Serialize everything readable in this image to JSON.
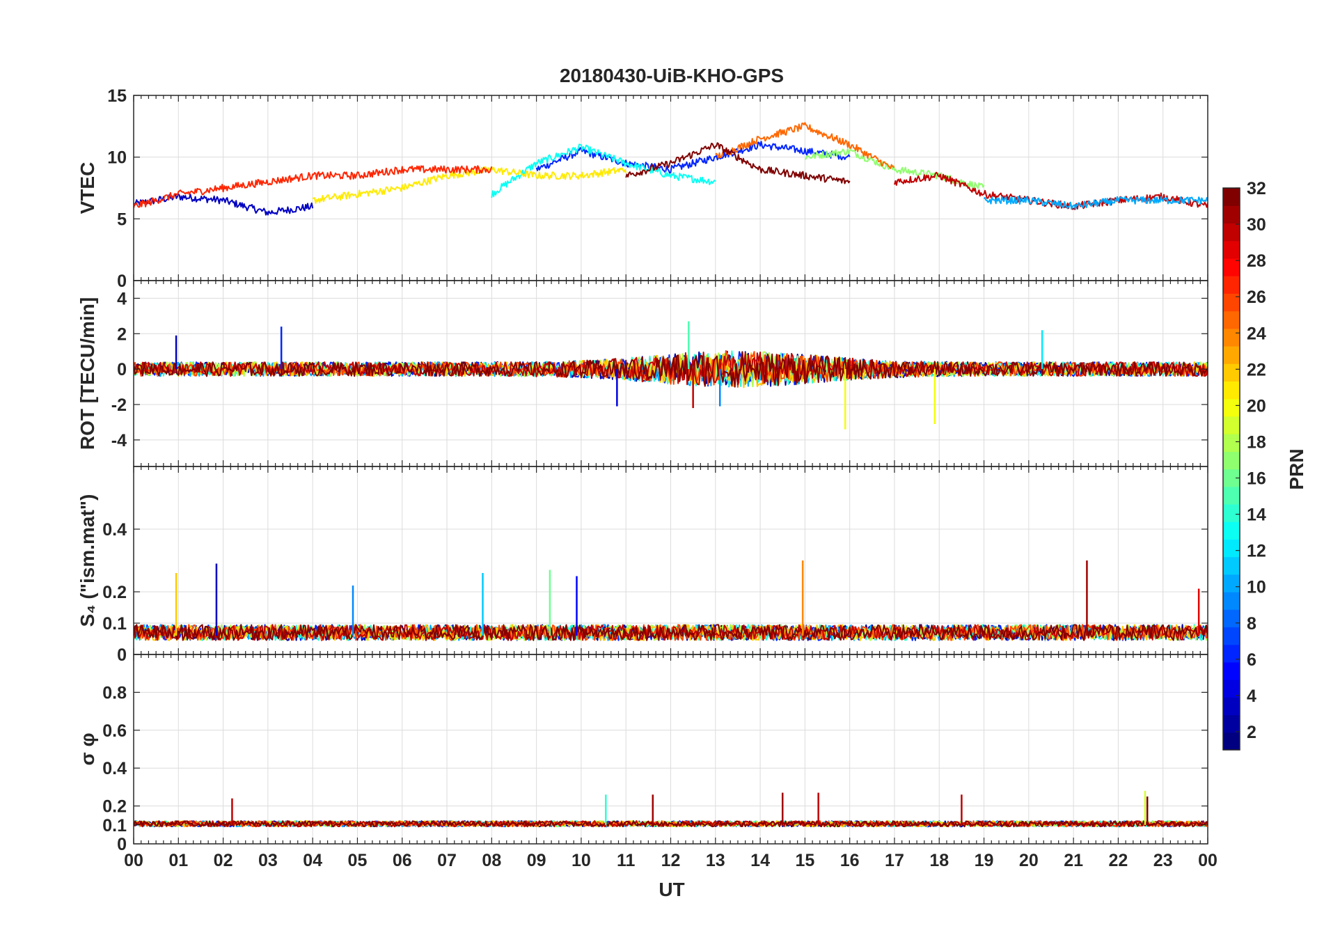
{
  "chart_data": {
    "type": "line",
    "title": "20180430-UiB-KHO-GPS",
    "xlabel": "UT",
    "x_ticks": [
      "00",
      "01",
      "02",
      "03",
      "04",
      "05",
      "06",
      "07",
      "08",
      "09",
      "10",
      "11",
      "12",
      "13",
      "14",
      "15",
      "16",
      "17",
      "18",
      "19",
      "20",
      "21",
      "22",
      "23",
      "00"
    ],
    "x_range_hours": [
      0,
      24
    ],
    "panels": [
      {
        "name": "vtec",
        "ylabel": "VTEC",
        "ylim": [
          0,
          15
        ],
        "yticks": [
          0,
          5,
          10,
          15
        ],
        "ytick_labels": [
          "0",
          "5",
          "10",
          "15"
        ],
        "typical_range": [
          3,
          13
        ],
        "series": [
          {
            "prn": 3,
            "hours": [
              0,
              1,
              2,
              3,
              4
            ],
            "values": [
              6.2,
              6.8,
              6.5,
              5.5,
              6.0
            ]
          },
          {
            "prn": 6,
            "hours": [
              9,
              10,
              11,
              12,
              13,
              14,
              15,
              16
            ],
            "values": [
              9.0,
              10.5,
              9.5,
              9.0,
              10.0,
              11.0,
              10.5,
              10.0
            ]
          },
          {
            "prn": 13,
            "hours": [
              8,
              9,
              10,
              11,
              12,
              13
            ],
            "values": [
              7.0,
              9.5,
              10.8,
              9.5,
              8.5,
              8.0
            ]
          },
          {
            "prn": 17,
            "hours": [
              15,
              16,
              17,
              18,
              19
            ],
            "values": [
              10.0,
              10.5,
              9.0,
              8.5,
              7.5
            ]
          },
          {
            "prn": 21,
            "hours": [
              4,
              5,
              6,
              7,
              8,
              9,
              10,
              11
            ],
            "values": [
              6.5,
              7.0,
              7.5,
              8.5,
              9.0,
              8.5,
              8.5,
              9.0
            ]
          },
          {
            "prn": 25,
            "hours": [
              13,
              14,
              15,
              16,
              17
            ],
            "values": [
              10.0,
              11.5,
              12.5,
              11.0,
              9.0
            ]
          },
          {
            "prn": 27,
            "hours": [
              0,
              1,
              2,
              3,
              4,
              5,
              6,
              7,
              8
            ],
            "values": [
              6.0,
              7.0,
              7.5,
              8.0,
              8.5,
              8.5,
              9.0,
              9.0,
              9.0
            ]
          },
          {
            "prn": 32,
            "hours": [
              11,
              12,
              13,
              14,
              15,
              16
            ],
            "values": [
              8.5,
              9.5,
              11.0,
              9.0,
              8.5,
              8.0
            ]
          },
          {
            "prn": 30,
            "hours": [
              17,
              18,
              19,
              20,
              21,
              22,
              23,
              24
            ],
            "values": [
              8.0,
              8.5,
              7.0,
              6.5,
              6.0,
              6.5,
              6.8,
              6.0
            ]
          },
          {
            "prn": 10,
            "hours": [
              19,
              20,
              21,
              22,
              23,
              24
            ],
            "values": [
              6.5,
              6.5,
              6.0,
              6.5,
              6.5,
              6.5
            ]
          }
        ]
      },
      {
        "name": "rot",
        "ylabel": "ROT [TECU/min]",
        "ylim": [
          -5.5,
          5
        ],
        "yticks": [
          -4,
          -2,
          0,
          2,
          4
        ],
        "ytick_labels": [
          "-4",
          "-2",
          "0",
          "2",
          "4"
        ],
        "typical_range": [
          -3.4,
          2.6
        ],
        "baseline": 0,
        "noise_amplitude": 0.4,
        "spikes": [
          {
            "hour": 0.95,
            "value": 1.9,
            "prn": 3
          },
          {
            "hour": 3.3,
            "value": 2.4,
            "prn": 6
          },
          {
            "hour": 10.8,
            "value": -2.1,
            "prn": 4
          },
          {
            "hour": 12.4,
            "value": 2.7,
            "prn": 15
          },
          {
            "hour": 12.5,
            "value": -2.2,
            "prn": 30
          },
          {
            "hour": 13.1,
            "value": -2.1,
            "prn": 9
          },
          {
            "hour": 15.9,
            "value": -3.4,
            "prn": 20
          },
          {
            "hour": 17.9,
            "value": -3.1,
            "prn": 20
          },
          {
            "hour": 20.3,
            "value": 2.2,
            "prn": 12
          }
        ]
      },
      {
        "name": "s4",
        "ylabel": "S₄ (\"ism.mat\")",
        "ylim": [
          0,
          0.6
        ],
        "yticks": [
          0,
          0.1,
          0.2,
          0.4
        ],
        "ytick_labels": [
          "0",
          "0.1",
          "0.2",
          "0.4"
        ],
        "typical_range": [
          0.03,
          0.3
        ],
        "baseline": 0.06,
        "noise_amplitude": 0.05,
        "spikes": [
          {
            "hour": 0.95,
            "value": 0.26,
            "prn": 22
          },
          {
            "hour": 1.85,
            "value": 0.29,
            "prn": 3
          },
          {
            "hour": 4.9,
            "value": 0.22,
            "prn": 9
          },
          {
            "hour": 7.8,
            "value": 0.26,
            "prn": 11
          },
          {
            "hour": 9.3,
            "value": 0.27,
            "prn": 16
          },
          {
            "hour": 9.9,
            "value": 0.25,
            "prn": 5
          },
          {
            "hour": 14.95,
            "value": 0.3,
            "prn": 24
          },
          {
            "hour": 21.3,
            "value": 0.3,
            "prn": 31
          },
          {
            "hour": 23.8,
            "value": 0.21,
            "prn": 29
          }
        ]
      },
      {
        "name": "sigma_phi",
        "ylabel": "σ φ",
        "ylim": [
          0,
          1
        ],
        "yticks": [
          0,
          0.1,
          0.2,
          0.4,
          0.6,
          0.8
        ],
        "ytick_labels": [
          "0",
          "0.1",
          "0.2",
          "0.4",
          "0.6",
          "0.8"
        ],
        "typical_range": [
          0.07,
          0.3
        ],
        "baseline": 0.1,
        "noise_amplitude": 0.03,
        "spikes": [
          {
            "hour": 2.2,
            "value": 0.24,
            "prn": 30
          },
          {
            "hour": 10.55,
            "value": 0.26,
            "prn": 14
          },
          {
            "hour": 11.6,
            "value": 0.26,
            "prn": 31
          },
          {
            "hour": 14.5,
            "value": 0.27,
            "prn": 31
          },
          {
            "hour": 15.3,
            "value": 0.27,
            "prn": 30
          },
          {
            "hour": 18.5,
            "value": 0.26,
            "prn": 30
          },
          {
            "hour": 22.6,
            "value": 0.28,
            "prn": 19
          },
          {
            "hour": 22.65,
            "value": 0.25,
            "prn": 32
          }
        ]
      }
    ],
    "colorbar": {
      "label": "PRN",
      "range": [
        1,
        32
      ],
      "ticks": [
        2,
        4,
        6,
        8,
        10,
        12,
        14,
        16,
        18,
        20,
        22,
        24,
        26,
        28,
        30,
        32
      ],
      "tick_labels": [
        "2",
        "4",
        "6",
        "8",
        "10",
        "12",
        "14",
        "16",
        "18",
        "20",
        "22",
        "24",
        "26",
        "28",
        "30",
        "32"
      ],
      "colormap": "jet"
    }
  }
}
